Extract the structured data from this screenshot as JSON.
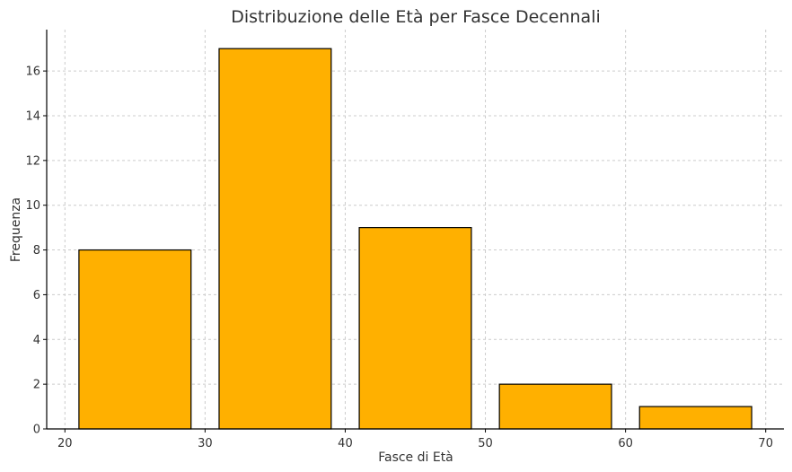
{
  "chart_data": {
    "type": "bar",
    "title": "Distribuzione delle Età per Fasce Decennali",
    "xlabel": "Fasce di Età",
    "ylabel": "Frequenza",
    "bins": [
      {
        "start": 20,
        "end": 30,
        "value": 8
      },
      {
        "start": 30,
        "end": 40,
        "value": 17
      },
      {
        "start": 40,
        "end": 50,
        "value": 9
      },
      {
        "start": 50,
        "end": 60,
        "value": 2
      },
      {
        "start": 60,
        "end": 70,
        "value": 1
      }
    ],
    "bar_width_fraction": 0.8,
    "xlim": [
      18.7,
      71.3
    ],
    "ylim": [
      0,
      17.85
    ],
    "xticks": [
      20,
      30,
      40,
      50,
      60,
      70
    ],
    "yticks": [
      0,
      2,
      4,
      6,
      8,
      10,
      12,
      14,
      16
    ],
    "grid": true,
    "colors": {
      "bar_fill": "#FFB000",
      "bar_edge": "#000000",
      "grid": "#cccccc"
    }
  }
}
